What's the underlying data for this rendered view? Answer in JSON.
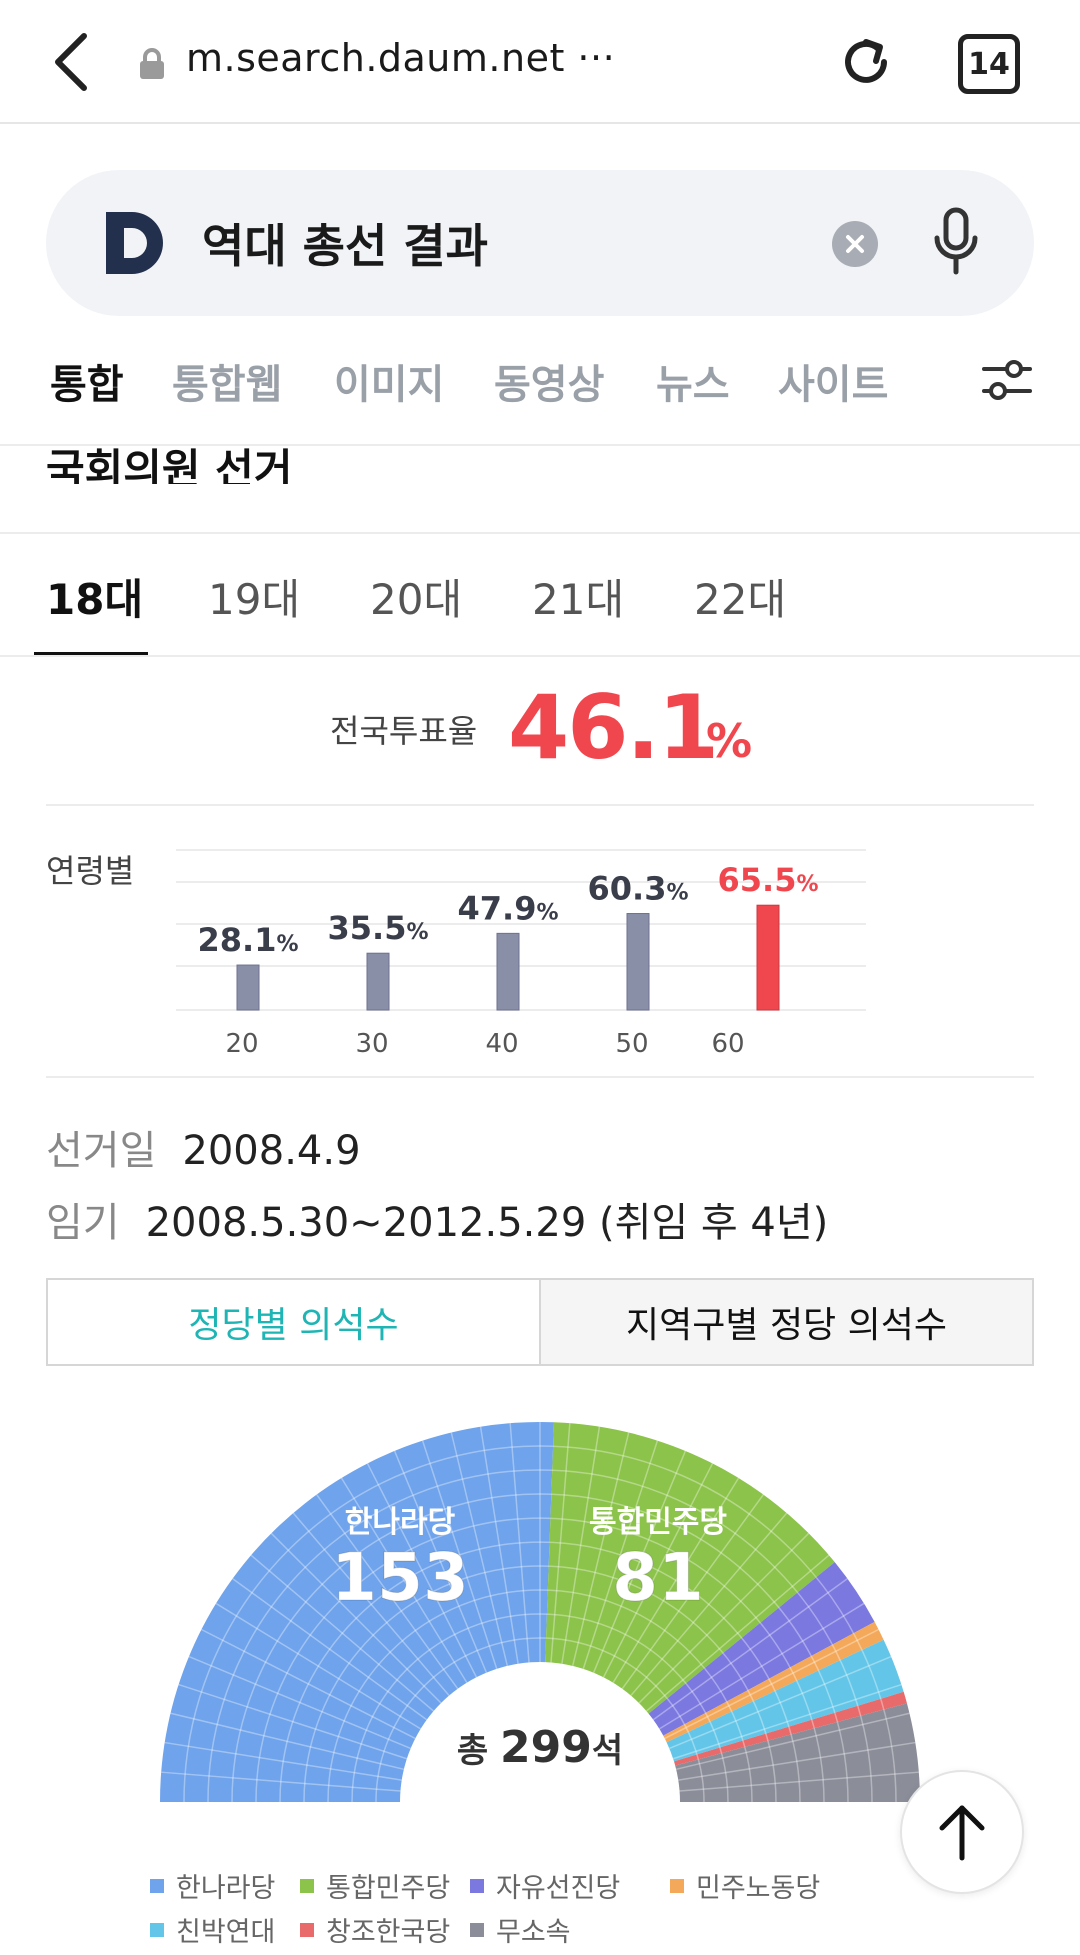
{
  "browser": {
    "url": "m.search.daum.net ···",
    "tab_count": "14"
  },
  "search": {
    "query": "역대 총선 결과"
  },
  "category_tabs": [
    "통합",
    "통합웹",
    "이미지",
    "동영상",
    "뉴스",
    "사이트"
  ],
  "section_title": "국회의원 선거",
  "era_tabs": [
    "18대",
    "19대",
    "20대",
    "21대",
    "22대"
  ],
  "turnout": {
    "label": "전국투표율",
    "value": "46.1",
    "unit": "%"
  },
  "age_label": "연령별",
  "chart_data": [
    {
      "type": "bar",
      "categories": [
        "20",
        "30",
        "40",
        "50",
        "60"
      ],
      "values": [
        28.1,
        35.5,
        47.9,
        60.3,
        65.5
      ],
      "value_labels": [
        "28.1",
        "35.5",
        "47.9",
        "60.3",
        "65.5"
      ],
      "unit": "%",
      "title": "",
      "xlabel": "",
      "ylabel": "",
      "ylim": [
        0,
        100
      ],
      "grid": true,
      "colors": {
        "default": "#8a8fa8",
        "highlight": "#f0474f"
      },
      "highlight_index": 4
    },
    {
      "type": "pie",
      "categories": [
        "한나라당",
        "통합민주당",
        "자유선진당",
        "민주노동당",
        "친박연대",
        "창조한국당",
        "무소속"
      ],
      "values": [
        153,
        81,
        18,
        5,
        14,
        3,
        25
      ],
      "colors": [
        "#6fa3ec",
        "#8cc34a",
        "#7b78e0",
        "#f4a95a",
        "#63c6e8",
        "#e96a6a",
        "#8b8d99"
      ],
      "center_label": {
        "prefix": "총 ",
        "value": "299",
        "suffix": "석"
      },
      "title": "",
      "legend_position": "bottom"
    }
  ],
  "election": {
    "date_key": "선거일",
    "date_value": "2008.4.9",
    "term_key": "임기",
    "term_value": "2008.5.30~2012.5.29 (취임 후 4년)"
  },
  "seat_tabs": {
    "active": "정당별 의석수",
    "inactive": "지역구별 정당 의석수"
  }
}
